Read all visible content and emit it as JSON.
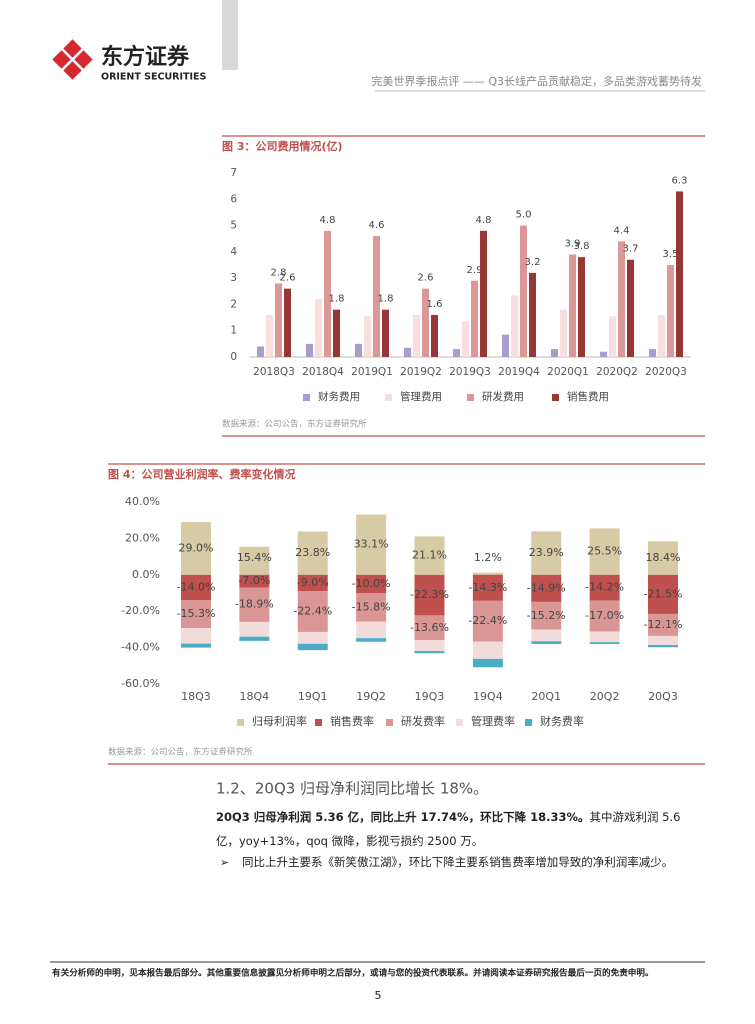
{
  "header": {
    "logo_cn": "东方证券",
    "logo_en": "ORIENT SECURITIES",
    "report_title": "完美世界季报点评 —— Q3长线产品贡献稳定，多品类游戏蓄势待发"
  },
  "chart_data": [
    {
      "type": "bar",
      "title": "图 3：公司费用情况(亿)",
      "categories": [
        "2018Q3",
        "2018Q4",
        "2019Q1",
        "2019Q2",
        "2019Q3",
        "2019Q4",
        "2020Q1",
        "2020Q2",
        "2020Q3"
      ],
      "series": [
        {
          "name": "财务费用",
          "color": "#a99bcb",
          "values": [
            0.4,
            0.5,
            0.5,
            0.35,
            0.3,
            0.85,
            0.3,
            0.2,
            0.3
          ]
        },
        {
          "name": "管理费用",
          "color": "#f8dedd",
          "values": [
            1.6,
            2.2,
            1.55,
            1.6,
            1.35,
            2.35,
            1.8,
            1.55,
            1.6
          ]
        },
        {
          "name": "研发费用",
          "color": "#dc9896",
          "values": [
            2.8,
            4.8,
            4.6,
            2.6,
            2.9,
            5.0,
            3.9,
            4.4,
            3.5
          ],
          "show_labels": true,
          "value_labels": [
            "2.8",
            "4.8",
            "4.6",
            "2.6",
            "2.9",
            "5.0",
            "3.9",
            "4.4",
            "3.5"
          ]
        },
        {
          "name": "销售费用",
          "color": "#953735",
          "values": [
            2.6,
            1.8,
            1.8,
            1.6,
            4.8,
            3.2,
            3.8,
            3.7,
            6.3
          ],
          "show_labels": true
        }
      ],
      "ylim": [
        0,
        7
      ],
      "yticks": [
        0,
        1,
        2,
        3,
        4,
        5,
        6,
        7
      ],
      "grid": false,
      "legend": "bottom",
      "source": "数据来源：公司公告，东方证券研究所"
    },
    {
      "type": "stacked",
      "title": "图 4：公司营业利润率、费率变化情况",
      "categories": [
        "18Q3",
        "18Q4",
        "19Q1",
        "19Q2",
        "19Q3",
        "19Q4",
        "20Q1",
        "20Q2",
        "20Q3"
      ],
      "series": [
        {
          "name": "归母利润率",
          "color": "#d6cba4",
          "values": [
            29.0,
            15.4,
            23.8,
            33.1,
            21.1,
            1.2,
            23.9,
            25.5,
            18.4
          ],
          "show_labels": true,
          "value_labels": [
            "29.0%",
            "15.4%",
            "23.8%",
            "33.1%",
            "21.1%",
            "1.2%",
            "23.9%",
            "25.5%",
            "18.4%"
          ]
        },
        {
          "name": "销售费率",
          "color": "#c0504d",
          "values": [
            -14.0,
            -7.0,
            -9.0,
            -10.0,
            -22.3,
            -14.3,
            -14.9,
            -14.2,
            -21.5
          ],
          "show_labels": true,
          "value_labels": [
            "-14.0%",
            "-7.0%",
            "-9.0%",
            "-10.0%",
            "-22.3%",
            "-14.3%",
            "-14.9%",
            "-14.2%",
            "-21.5%"
          ]
        },
        {
          "name": "研发费率",
          "color": "#d99694",
          "values": [
            -15.3,
            -18.9,
            -22.4,
            -15.8,
            -13.6,
            -22.4,
            -15.2,
            -17.0,
            -12.1
          ],
          "show_labels": true,
          "value_labels": [
            "-15.3%",
            "-18.9%",
            "-22.4%",
            "-15.8%",
            "-13.6%",
            "-22.4%",
            "-15.2%",
            "-17.0%",
            "-12.1%"
          ]
        },
        {
          "name": "管理费率",
          "color": "#f2dcdb",
          "values": [
            -8.5,
            -8.1,
            -6.5,
            -9.0,
            -6.0,
            -9.5,
            -6.4,
            -5.8,
            -5.0
          ]
        },
        {
          "name": "财务费率",
          "color": "#4bacc6",
          "values": [
            -2.2,
            -2.3,
            -3.5,
            -2.0,
            -1.2,
            -4.6,
            -1.5,
            -1.0,
            -1.2
          ]
        }
      ],
      "ylim": [
        -60,
        40
      ],
      "yticks": [
        {
          "value": -60,
          "label": "-60.0%"
        },
        {
          "value": -40,
          "label": "-40.0%"
        },
        {
          "value": -20,
          "label": "-20.0%"
        },
        {
          "value": 0,
          "label": "0.0%"
        },
        {
          "value": 20,
          "label": "20.0%"
        },
        {
          "value": 40,
          "label": "40.0%"
        }
      ],
      "grid": false,
      "legend": "bottom",
      "source": "数据来源：公司公告，东方证券研究所"
    }
  ],
  "section": {
    "heading": "1.2、20Q3 归母净利润同比增长 18%。",
    "paragraph_bold": "20Q3 归母净利润 5.36 亿，同比上升 17.74%，环比下降 18.33%。",
    "paragraph_text": "其中游戏利润 5.6 亿，yoy+13%，qoq 微降，影视亏损约 2500 万。",
    "bullet": "同比上升主要系《新笑傲江湖》，环比下降主要系销售费率增加导致的净利润率减少。"
  },
  "footer": {
    "disclaimer": "有关分析师的申明，见本报告最后部分。其他重要信息披露见分析师申明之后部分，或请与您的投资代表联系。并请阅读本证券研究报告最后一页的免责申明。",
    "page": 5
  }
}
